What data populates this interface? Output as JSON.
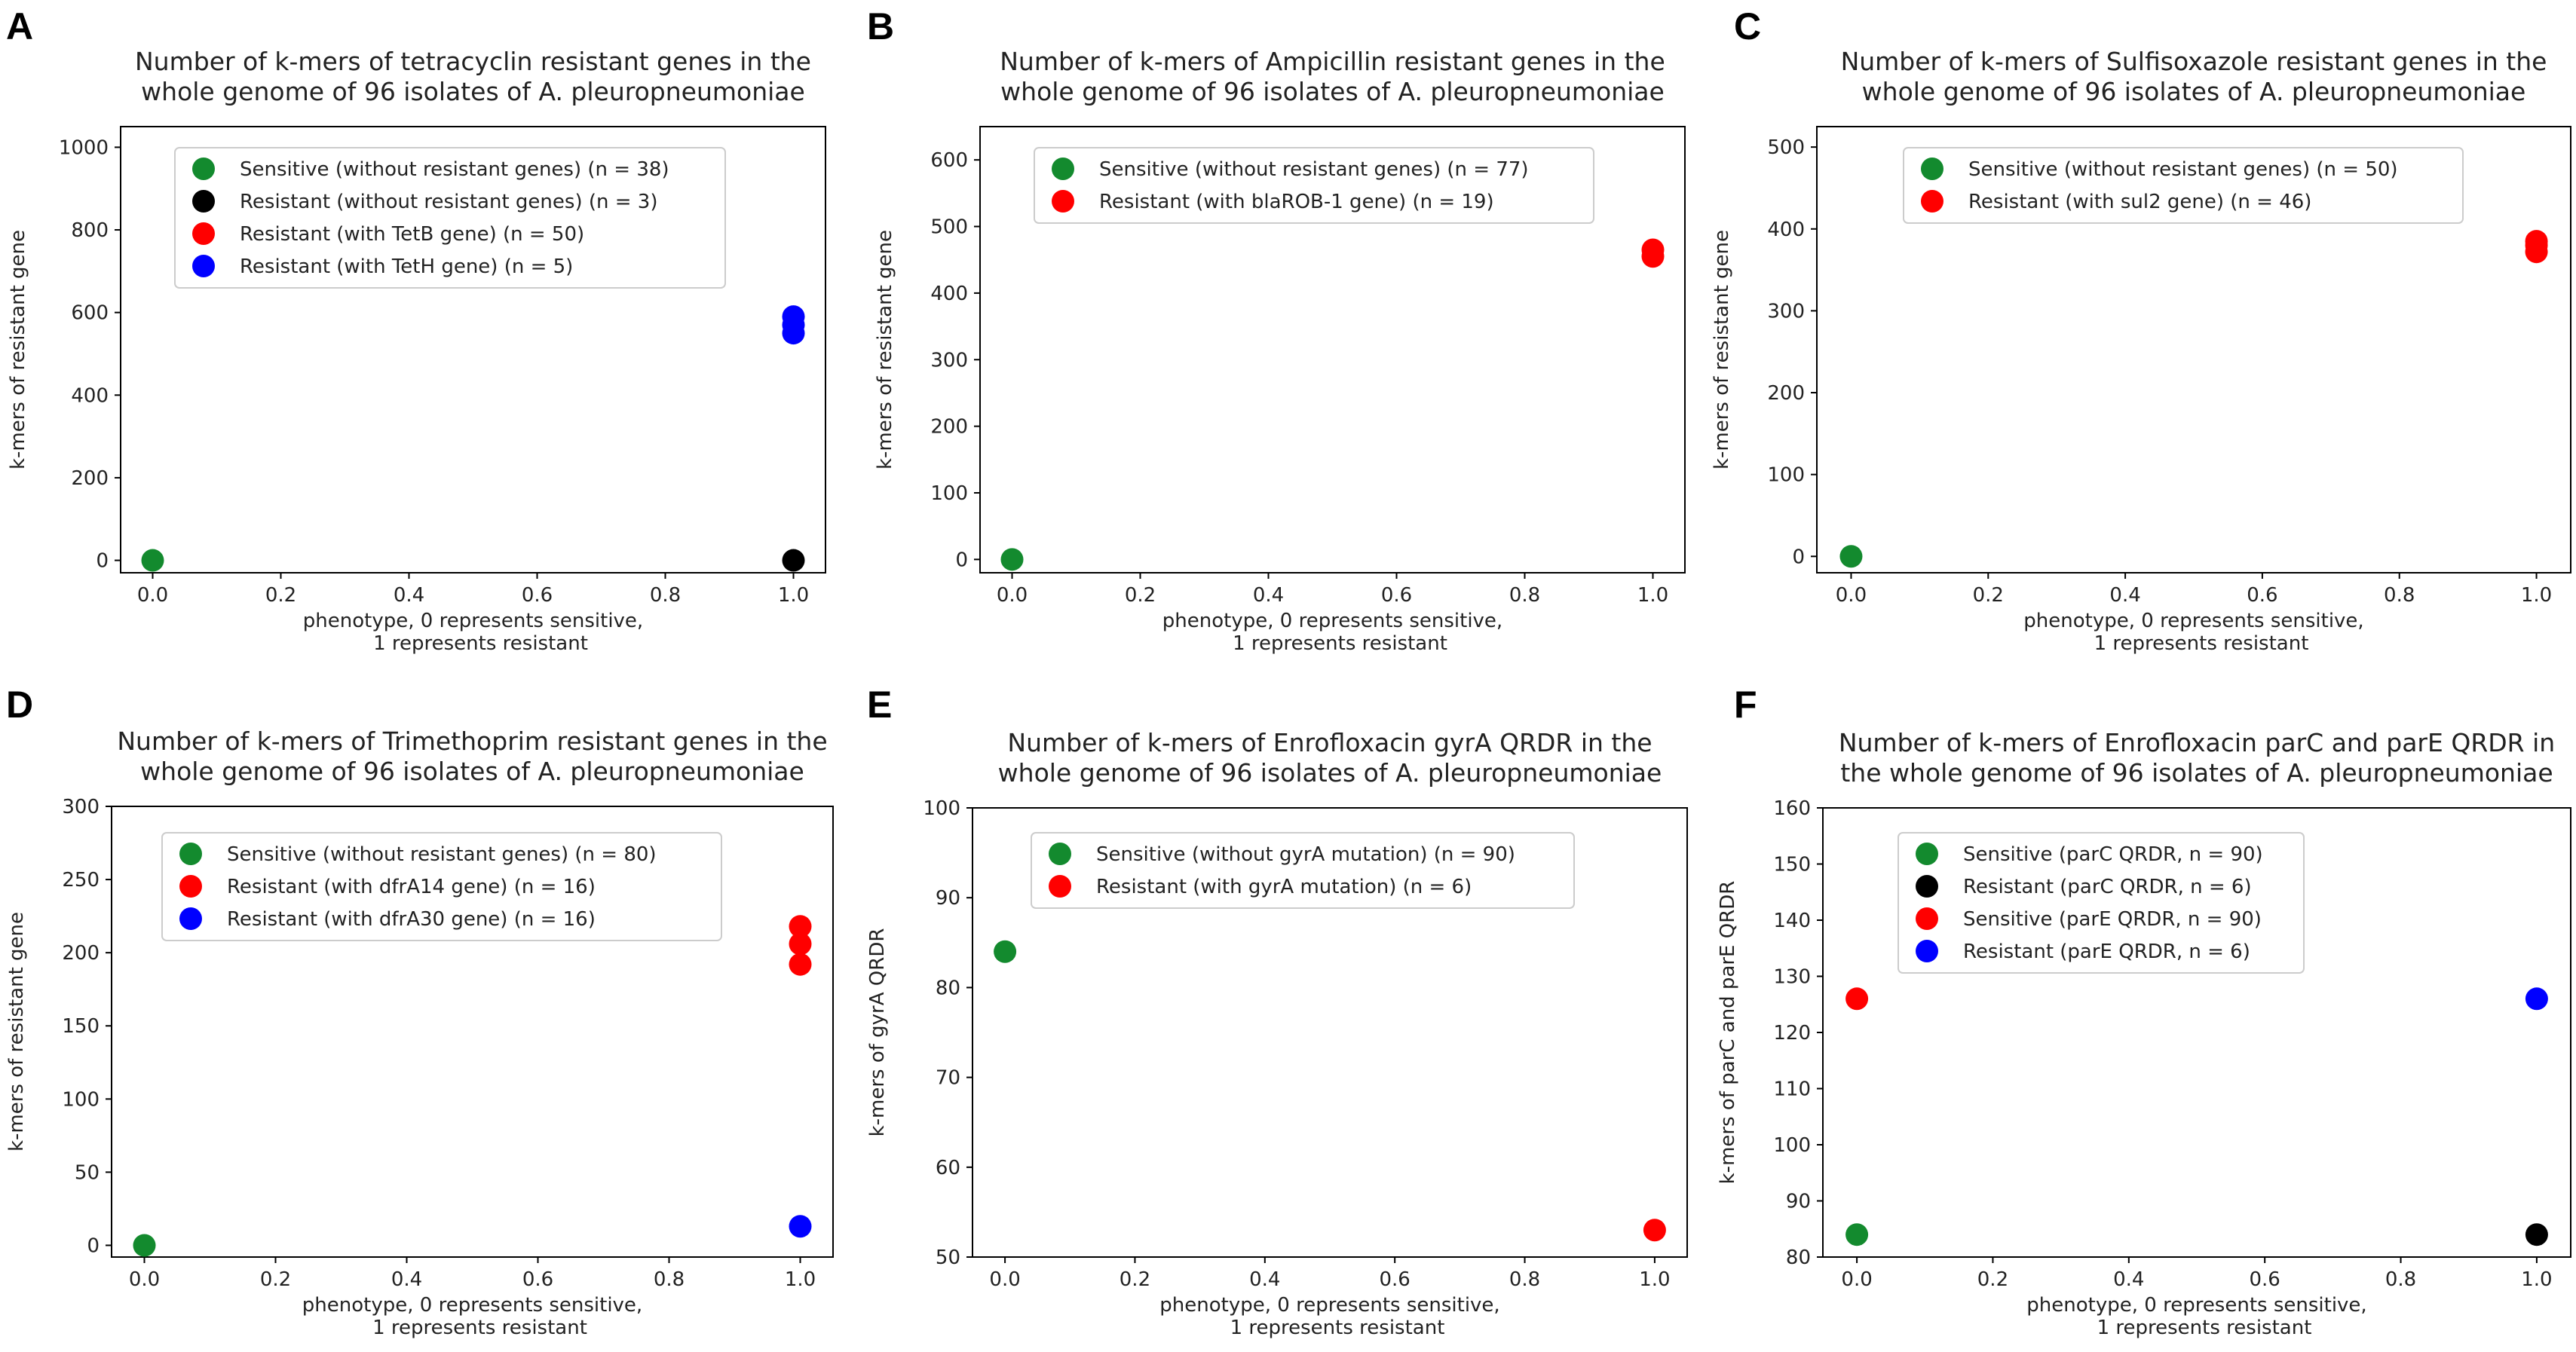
{
  "chart_data": [
    {
      "panel": "A",
      "type": "scatter",
      "title": [
        "Number of k-mers of tetracyclin resistant genes in the",
        "whole genome of 96 isolates of A. pleuropneumoniae"
      ],
      "xlabel": [
        "phenotype, 0 represents sensitive,",
        "1 represents resistant"
      ],
      "ylabel": "k-mers of resistant gene",
      "xlim": [
        -0.05,
        1.05
      ],
      "ylim": [
        -30,
        1050
      ],
      "xticks": [
        0.0,
        0.2,
        0.4,
        0.6,
        0.8,
        1.0
      ],
      "xtick_labels": [
        "0.0",
        "0.2",
        "0.4",
        "0.6",
        "0.8",
        "1.0"
      ],
      "yticks": [
        0,
        200,
        400,
        600,
        800,
        1000
      ],
      "ytick_labels": [
        "0",
        "200",
        "400",
        "600",
        "800",
        "1000"
      ],
      "legend_position": "top-center",
      "series": [
        {
          "name": "Sensitive (without resistant genes) (n = 38)",
          "color": "#138a2e",
          "x": [
            0
          ],
          "y": [
            0
          ]
        },
        {
          "name": "Resistant (without resistant genes) (n = 3)",
          "color": "#000000",
          "x": [
            1
          ],
          "y": [
            0
          ]
        },
        {
          "name": "Resistant (with TetB gene) (n = 50)",
          "color": "#ff0000",
          "x": [],
          "y": []
        },
        {
          "name": "Resistant (with TetH gene) (n = 5)",
          "color": "#0000ff",
          "x": [
            1,
            1,
            1
          ],
          "y": [
            590,
            570,
            550
          ]
        }
      ]
    },
    {
      "panel": "B",
      "type": "scatter",
      "title": [
        "Number of k-mers of Ampicillin resistant genes in the",
        "whole genome of 96 isolates of A. pleuropneumoniae"
      ],
      "xlabel": [
        "phenotype, 0 represents sensitive,",
        "1 represents resistant"
      ],
      "ylabel": "k-mers of resistant gene",
      "xlim": [
        -0.05,
        1.05
      ],
      "ylim": [
        -20,
        650
      ],
      "xticks": [
        0.0,
        0.2,
        0.4,
        0.6,
        0.8,
        1.0
      ],
      "xtick_labels": [
        "0.0",
        "0.2",
        "0.4",
        "0.6",
        "0.8",
        "1.0"
      ],
      "yticks": [
        0,
        100,
        200,
        300,
        400,
        500,
        600
      ],
      "ytick_labels": [
        "0",
        "100",
        "200",
        "300",
        "400",
        "500",
        "600"
      ],
      "legend_position": "top-center",
      "series": [
        {
          "name": "Sensitive (without resistant genes) (n = 77)",
          "color": "#138a2e",
          "x": [
            0
          ],
          "y": [
            0
          ]
        },
        {
          "name": "Resistant (with blaROB-1 gene) (n = 19)",
          "color": "#ff0000",
          "x": [
            1,
            1
          ],
          "y": [
            465,
            455
          ]
        }
      ]
    },
    {
      "panel": "C",
      "type": "scatter",
      "title": [
        "Number of k-mers of Sulfisoxazole resistant genes in the",
        "whole genome of 96 isolates of A. pleuropneumoniae"
      ],
      "xlabel": [
        "phenotype, 0 represents sensitive,",
        "1 represents resistant"
      ],
      "ylabel": "k-mers of resistant gene",
      "xlim": [
        -0.05,
        1.05
      ],
      "ylim": [
        -20,
        525
      ],
      "xticks": [
        0.0,
        0.2,
        0.4,
        0.6,
        0.8,
        1.0
      ],
      "xtick_labels": [
        "0.0",
        "0.2",
        "0.4",
        "0.6",
        "0.8",
        "1.0"
      ],
      "yticks": [
        0,
        100,
        200,
        300,
        400,
        500
      ],
      "ytick_labels": [
        "0",
        "100",
        "200",
        "300",
        "400",
        "500"
      ],
      "legend_position": "top-center",
      "series": [
        {
          "name": "Sensitive (without resistant genes) (n = 50)",
          "color": "#138a2e",
          "x": [
            0
          ],
          "y": [
            0
          ]
        },
        {
          "name": "Resistant (with sul2 gene) (n = 46)",
          "color": "#ff0000",
          "x": [
            1,
            1,
            1
          ],
          "y": [
            385,
            380,
            372
          ]
        }
      ]
    },
    {
      "panel": "D",
      "type": "scatter",
      "title": [
        "Number of k-mers of Trimethoprim resistant genes in the",
        "whole genome of 96 isolates of A. pleuropneumoniae"
      ],
      "xlabel": [
        "phenotype, 0 represents sensitive,",
        "1 represents resistant"
      ],
      "ylabel": "k-mers of resistant gene",
      "xlim": [
        -0.05,
        1.05
      ],
      "ylim": [
        -8,
        300
      ],
      "xticks": [
        0.0,
        0.2,
        0.4,
        0.6,
        0.8,
        1.0
      ],
      "xtick_labels": [
        "0.0",
        "0.2",
        "0.4",
        "0.6",
        "0.8",
        "1.0"
      ],
      "yticks": [
        0,
        50,
        100,
        150,
        200,
        250,
        300
      ],
      "ytick_labels": [
        "0",
        "50",
        "100",
        "150",
        "200",
        "250",
        "300"
      ],
      "legend_position": "top-center",
      "series": [
        {
          "name": "Sensitive (without resistant genes) (n = 80)",
          "color": "#138a2e",
          "x": [
            0
          ],
          "y": [
            0
          ]
        },
        {
          "name": "Resistant (with dfrA14 gene) (n = 16)",
          "color": "#ff0000",
          "x": [
            1,
            1,
            1
          ],
          "y": [
            218,
            206,
            192
          ]
        },
        {
          "name": "Resistant (with dfrA30 gene) (n = 16)",
          "color": "#0000ff",
          "x": [
            1
          ],
          "y": [
            13
          ]
        }
      ]
    },
    {
      "panel": "E",
      "type": "scatter",
      "title": [
        "Number of k-mers of Enrofloxacin gyrA QRDR in the",
        "whole genome of 96 isolates of A. pleuropneumoniae"
      ],
      "xlabel": [
        "phenotype, 0 represents sensitive,",
        "1 represents resistant"
      ],
      "ylabel": "k-mers of gyrA QRDR",
      "xlim": [
        -0.05,
        1.05
      ],
      "ylim": [
        50,
        100
      ],
      "xticks": [
        0.0,
        0.2,
        0.4,
        0.6,
        0.8,
        1.0
      ],
      "xtick_labels": [
        "0.0",
        "0.2",
        "0.4",
        "0.6",
        "0.8",
        "1.0"
      ],
      "yticks": [
        50,
        60,
        70,
        80,
        90,
        100
      ],
      "ytick_labels": [
        "50",
        "60",
        "70",
        "80",
        "90",
        "100"
      ],
      "legend_position": "top-center",
      "series": [
        {
          "name": "Sensitive (without gyrA mutation) (n = 90)",
          "color": "#138a2e",
          "x": [
            0
          ],
          "y": [
            84
          ]
        },
        {
          "name": "Resistant (with gyrA mutation) (n = 6)",
          "color": "#ff0000",
          "x": [
            1
          ],
          "y": [
            53
          ]
        }
      ]
    },
    {
      "panel": "F",
      "type": "scatter",
      "title": [
        "Number of k-mers of Enrofloxacin parC and parE QRDR in",
        "the whole genome of 96 isolates of A. pleuropneumoniae"
      ],
      "xlabel": [
        "phenotype, 0 represents sensitive,",
        "1 represents resistant"
      ],
      "ylabel": "k-mers of parC and parE QRDR",
      "xlim": [
        -0.05,
        1.05
      ],
      "ylim": [
        80,
        160
      ],
      "xticks": [
        0.0,
        0.2,
        0.4,
        0.6,
        0.8,
        1.0
      ],
      "xtick_labels": [
        "0.0",
        "0.2",
        "0.4",
        "0.6",
        "0.8",
        "1.0"
      ],
      "yticks": [
        80,
        90,
        100,
        110,
        120,
        130,
        140,
        150,
        160
      ],
      "ytick_labels": [
        "80",
        "90",
        "100",
        "110",
        "120",
        "130",
        "140",
        "150",
        "160"
      ],
      "legend_position": "top-left",
      "series": [
        {
          "name": "Sensitive (parC QRDR, n = 90)",
          "color": "#138a2e",
          "x": [
            0
          ],
          "y": [
            84
          ]
        },
        {
          "name": "Resistant (parC QRDR, n = 6)",
          "color": "#000000",
          "x": [
            1
          ],
          "y": [
            84
          ]
        },
        {
          "name": "Sensitive (parE QRDR, n = 90)",
          "color": "#ff0000",
          "x": [
            0
          ],
          "y": [
            126
          ]
        },
        {
          "name": "Resistant (parE QRDR, n = 6)",
          "color": "#0000ff",
          "x": [
            1
          ],
          "y": [
            126
          ]
        }
      ]
    }
  ]
}
